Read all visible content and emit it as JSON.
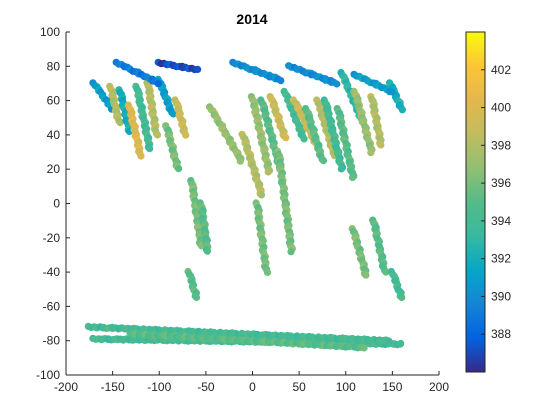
{
  "chart_data": {
    "type": "scatter",
    "title": "2014",
    "xlabel": "",
    "ylabel": "",
    "xlim": [
      -200,
      200
    ],
    "ylim": [
      -100,
      100
    ],
    "xticks": [
      -200,
      -150,
      -100,
      -50,
      0,
      50,
      100,
      150,
      200
    ],
    "yticks": [
      -100,
      -80,
      -60,
      -40,
      -20,
      0,
      20,
      40,
      60,
      80,
      100
    ],
    "grid": false,
    "colormap": "parula",
    "colorbar": {
      "range": [
        386,
        404
      ],
      "ticks": [
        388,
        390,
        392,
        394,
        396,
        398,
        400,
        402
      ],
      "position": "right"
    },
    "swaths": [
      {
        "x": [
          -170,
          -150
        ],
        "y": [
          70,
          55
        ],
        "c": 391
      },
      {
        "x": [
          -152,
          -143
        ],
        "y": [
          68,
          47
        ],
        "c": 398
      },
      {
        "x": [
          -142,
          -132
        ],
        "y": [
          66,
          42
        ],
        "c": 392
      },
      {
        "x": [
          -132,
          -120
        ],
        "y": [
          57,
          28
        ],
        "c": 400
      },
      {
        "x": [
          -124,
          -110
        ],
        "y": [
          68,
          32
        ],
        "c": 394
      },
      {
        "x": [
          -112,
          -103
        ],
        "y": [
          70,
          40
        ],
        "c": 398
      },
      {
        "x": [
          -100,
          -86
        ],
        "y": [
          72,
          52
        ],
        "c": 391
      },
      {
        "x": [
          -82,
          -72
        ],
        "y": [
          60,
          40
        ],
        "c": 399
      },
      {
        "x": [
          -92,
          -80
        ],
        "y": [
          45,
          20
        ],
        "c": 396
      },
      {
        "x": [
          -65,
          -55
        ],
        "y": [
          13,
          -25
        ],
        "c": 396
      },
      {
        "x": [
          -55,
          -48
        ],
        "y": [
          0,
          -28
        ],
        "c": 395
      },
      {
        "x": [
          -68,
          -60
        ],
        "y": [
          -40,
          -55
        ],
        "c": 395
      },
      {
        "x": [
          -145,
          -100
        ],
        "y": [
          82,
          70
        ],
        "c": 389
      },
      {
        "x": [
          -100,
          -60
        ],
        "y": [
          82,
          78
        ],
        "c": 387
      },
      {
        "x": [
          -45,
          -12
        ],
        "y": [
          56,
          25
        ],
        "c": 397
      },
      {
        "x": [
          -10,
          10
        ],
        "y": [
          40,
          5
        ],
        "c": 398
      },
      {
        "x": [
          0,
          18
        ],
        "y": [
          62,
          18
        ],
        "c": 397
      },
      {
        "x": [
          5,
          15
        ],
        "y": [
          0,
          -40
        ],
        "c": 396
      },
      {
        "x": [
          10,
          30
        ],
        "y": [
          60,
          20
        ],
        "c": 395
      },
      {
        "x": [
          20,
          35
        ],
        "y": [
          62,
          38
        ],
        "c": 399
      },
      {
        "x": [
          28,
          42
        ],
        "y": [
          30,
          -28
        ],
        "c": 396
      },
      {
        "x": [
          35,
          55
        ],
        "y": [
          65,
          38
        ],
        "c": 394
      },
      {
        "x": [
          45,
          70
        ],
        "y": [
          60,
          33
        ],
        "c": 399
      },
      {
        "x": [
          58,
          75
        ],
        "y": [
          55,
          25
        ],
        "c": 395
      },
      {
        "x": [
          70,
          88
        ],
        "y": [
          60,
          28
        ],
        "c": 398
      },
      {
        "x": [
          78,
          96
        ],
        "y": [
          60,
          20
        ],
        "c": 394
      },
      {
        "x": [
          92,
          108
        ],
        "y": [
          55,
          15
        ],
        "c": 395
      },
      {
        "x": [
          96,
          118
        ],
        "y": [
          76,
          48
        ],
        "c": 393
      },
      {
        "x": [
          110,
          128
        ],
        "y": [
          65,
          30
        ],
        "c": 397
      },
      {
        "x": [
          128,
          138
        ],
        "y": [
          62,
          34
        ],
        "c": 398
      },
      {
        "x": [
          130,
          142
        ],
        "y": [
          -10,
          -40
        ],
        "c": 395
      },
      {
        "x": [
          108,
          122
        ],
        "y": [
          -15,
          -42
        ],
        "c": 396
      },
      {
        "x": [
          150,
          160
        ],
        "y": [
          -40,
          -55
        ],
        "c": 394
      },
      {
        "x": [
          148,
          160
        ],
        "y": [
          70,
          55
        ],
        "c": 392
      },
      {
        "x": [
          -20,
          30
        ],
        "y": [
          82,
          72
        ],
        "c": 390
      },
      {
        "x": [
          40,
          90
        ],
        "y": [
          80,
          70
        ],
        "c": 390
      },
      {
        "x": [
          110,
          150
        ],
        "y": [
          75,
          65
        ],
        "c": 391
      },
      {
        "x": [
          -170,
          160
        ],
        "y": [
          -79,
          -82
        ],
        "c": 394
      },
      {
        "x": [
          -175,
          145
        ],
        "y": [
          -72,
          -80
        ],
        "c": 394
      },
      {
        "x": [
          -130,
          120
        ],
        "y": [
          -76,
          -84
        ],
        "c": 395
      }
    ]
  }
}
